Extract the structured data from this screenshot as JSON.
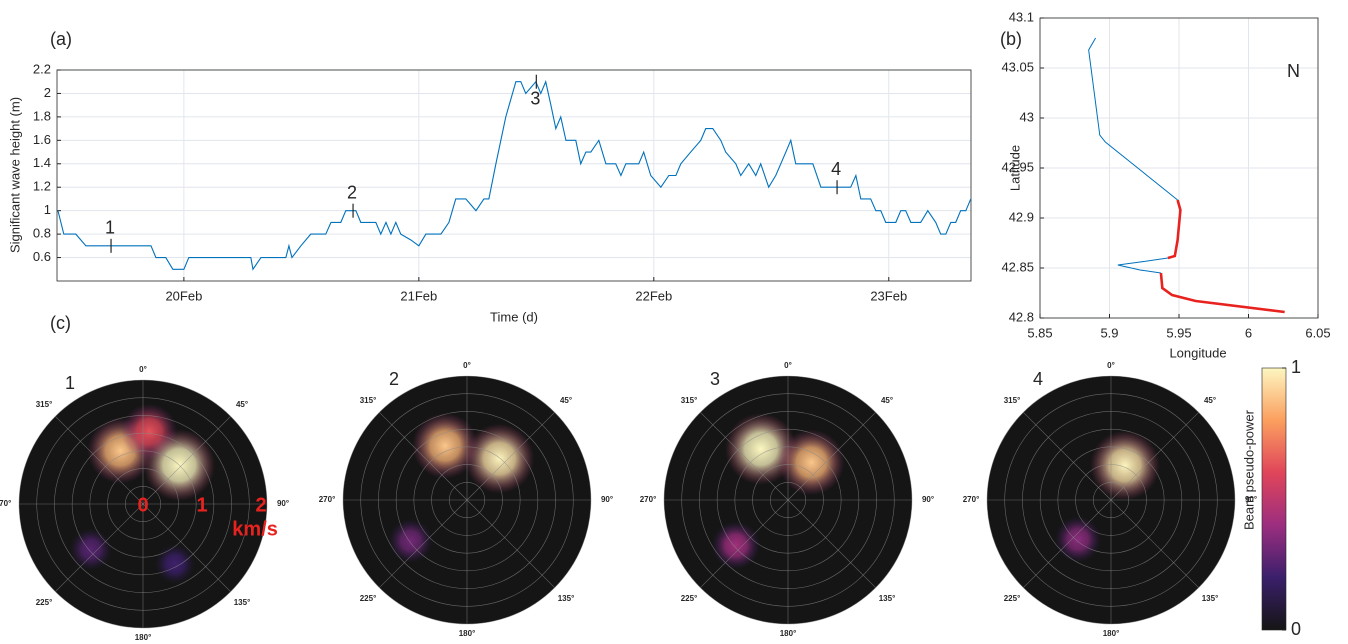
{
  "chart_data": [
    {
      "type": "line",
      "label": "(a)",
      "ylabel": "Significant wave height (m)",
      "xlabel": "Time (d)",
      "color": "#0072bd",
      "grid": true,
      "xlim": [
        19.46,
        23.35
      ],
      "xticks": [
        {
          "value": 20,
          "label": "20Feb"
        },
        {
          "value": 21,
          "label": "21Feb"
        },
        {
          "value": 22,
          "label": "22Feb"
        },
        {
          "value": 23,
          "label": "23Feb"
        }
      ],
      "ylim": [
        0.4,
        2.2
      ],
      "yticks": [
        0.6,
        0.8,
        1,
        1.2,
        1.4,
        1.6,
        1.8,
        2,
        2.2
      ],
      "x": [
        19.464,
        19.489,
        19.54,
        19.583,
        19.86,
        19.881,
        19.923,
        19.953,
        20.0,
        20.021,
        20.285,
        20.294,
        20.328,
        20.434,
        20.447,
        20.46,
        20.498,
        20.54,
        20.604,
        20.626,
        20.668,
        20.689,
        20.732,
        20.753,
        20.817,
        20.838,
        20.86,
        20.881,
        20.902,
        20.923,
        20.966,
        21.0,
        21.03,
        21.094,
        21.128,
        21.157,
        21.2,
        21.243,
        21.277,
        21.298,
        21.328,
        21.37,
        21.413,
        21.434,
        21.455,
        21.498,
        21.519,
        21.54,
        21.562,
        21.583,
        21.604,
        21.626,
        21.668,
        21.689,
        21.711,
        21.732,
        21.766,
        21.796,
        21.838,
        21.86,
        21.881,
        21.936,
        21.957,
        21.987,
        22.03,
        22.064,
        22.094,
        22.115,
        22.157,
        22.2,
        22.221,
        22.251,
        22.285,
        22.306,
        22.349,
        22.37,
        22.404,
        22.434,
        22.455,
        22.489,
        22.519,
        22.562,
        22.583,
        22.604,
        22.677,
        22.711,
        22.838,
        22.86,
        22.881,
        22.923,
        22.945,
        22.966,
        22.987,
        23.009,
        23.03,
        23.051,
        23.072,
        23.094,
        23.136,
        23.166,
        23.2,
        23.221,
        23.243,
        23.264,
        23.285,
        23.306,
        23.328,
        23.349
      ],
      "values": [
        1,
        0.8,
        0.8,
        0.7,
        0.7,
        0.6,
        0.6,
        0.5,
        0.5,
        0.6,
        0.6,
        0.5,
        0.6,
        0.6,
        0.7,
        0.6,
        0.7,
        0.8,
        0.8,
        0.9,
        0.9,
        1,
        1,
        0.9,
        0.9,
        0.8,
        0.9,
        0.8,
        0.9,
        0.8,
        0.75,
        0.7,
        0.8,
        0.8,
        0.9,
        1.1,
        1.1,
        1,
        1.1,
        1.1,
        1.4,
        1.8,
        2.1,
        2.1,
        2,
        2.1,
        2,
        2.1,
        1.9,
        1.7,
        1.8,
        1.6,
        1.6,
        1.4,
        1.5,
        1.5,
        1.6,
        1.4,
        1.4,
        1.3,
        1.4,
        1.4,
        1.5,
        1.3,
        1.2,
        1.3,
        1.3,
        1.4,
        1.5,
        1.6,
        1.7,
        1.7,
        1.6,
        1.5,
        1.4,
        1.3,
        1.4,
        1.3,
        1.4,
        1.2,
        1.3,
        1.5,
        1.6,
        1.4,
        1.4,
        1.2,
        1.2,
        1.3,
        1.1,
        1.1,
        1,
        1,
        0.9,
        0.9,
        0.9,
        1,
        1,
        0.9,
        0.9,
        1,
        0.9,
        0.8,
        0.8,
        0.9,
        0.9,
        1,
        1,
        1.1
      ],
      "markers": [
        {
          "label": "1",
          "x": 19.69,
          "y": 0.7
        },
        {
          "label": "2",
          "x": 20.72,
          "y": 1
        },
        {
          "label": "3",
          "x": 21.5,
          "y": 2.1
        },
        {
          "label": "4",
          "x": 22.78,
          "y": 1.2
        }
      ]
    },
    {
      "type": "line",
      "label": "(b)",
      "xlabel": "Longitude",
      "ylabel": "Latitude",
      "annotation": "N",
      "grid": true,
      "xlim": [
        5.85,
        6.05
      ],
      "xticks": [
        5.85,
        5.9,
        5.95,
        6,
        6.05
      ],
      "ylim": [
        42.8,
        43.1
      ],
      "yticks": [
        42.8,
        42.85,
        42.9,
        42.95,
        43,
        43.05,
        43.1
      ],
      "series": [
        {
          "color": "#0072bd",
          "x": [
            5.89,
            5.885,
            5.893,
            5.897,
            5.949
          ],
          "values": [
            43.08,
            43.068,
            42.983,
            42.976,
            42.918
          ]
        },
        {
          "color": "#e8231f",
          "x": [
            5.949,
            5.951,
            5.949,
            5.947,
            5.942
          ],
          "values": [
            42.918,
            42.908,
            42.878,
            42.862,
            42.86
          ]
        },
        {
          "color": "#0072bd",
          "x": [
            5.942,
            5.922,
            5.906,
            5.922,
            5.937
          ],
          "values": [
            42.86,
            42.856,
            42.853,
            42.848,
            42.845
          ]
        },
        {
          "color": "#e8231f",
          "x": [
            5.937,
            5.938,
            5.945,
            5.962,
            6.026
          ],
          "values": [
            42.845,
            42.83,
            42.823,
            42.817,
            42.806
          ]
        }
      ]
    },
    {
      "type": "polar",
      "label": "(c)",
      "theta_ticks": [
        {
          "value": 0,
          "label": "0°"
        },
        {
          "value": 45,
          "label": "45°"
        },
        {
          "value": 90,
          "label": "90°"
        },
        {
          "value": 135,
          "label": "135°"
        },
        {
          "value": 180,
          "label": "180°"
        },
        {
          "value": 225,
          "label": "225°"
        },
        {
          "value": 270,
          "label": "270°"
        },
        {
          "value": 315,
          "label": "315°"
        }
      ],
      "rlim": [
        0,
        2.1
      ],
      "rgrid": [
        0.3,
        0.6,
        0.9,
        1.2,
        1.5,
        1.8,
        2.1
      ],
      "rlabels": [
        0,
        1,
        2
      ],
      "runit": "km/s",
      "panels": [
        {
          "label": "1",
          "blobs": [
            {
              "angle": 337,
              "speed": 0.98,
              "power": 0.85
            },
            {
              "angle": 5,
              "speed": 1.23,
              "power": 0.6
            },
            {
              "angle": 43,
              "speed": 0.9,
              "power": 1
            },
            {
              "angle": 229,
              "speed": 1.17,
              "power": 0.25
            },
            {
              "angle": 152,
              "speed": 1.15,
              "power": 0.2
            }
          ]
        },
        {
          "label": "2",
          "blobs": [
            {
              "angle": 338,
              "speed": 0.99,
              "power": 0.85
            },
            {
              "angle": 38,
              "speed": 0.89,
              "power": 0.95
            },
            {
              "angle": 234,
              "speed": 1.18,
              "power": 0.3
            }
          ]
        },
        {
          "label": "3",
          "blobs": [
            {
              "angle": 332,
              "speed": 0.98,
              "power": 1
            },
            {
              "angle": 32,
              "speed": 0.75,
              "power": 0.85
            },
            {
              "angle": 229,
              "speed": 1.17,
              "power": 0.4
            }
          ]
        },
        {
          "label": "4",
          "blobs": [
            {
              "angle": 22,
              "speed": 0.63,
              "power": 0.95
            },
            {
              "angle": 220,
              "speed": 0.87,
              "power": 0.35
            }
          ]
        }
      ],
      "colorbar": {
        "label": "Beam pseudo-power",
        "ticks": [
          0,
          1
        ],
        "colors": [
          "#151515",
          "#3b1f6b",
          "#9c2e7f",
          "#e0455a",
          "#fb9f5f",
          "#fcf6c0"
        ]
      }
    }
  ]
}
